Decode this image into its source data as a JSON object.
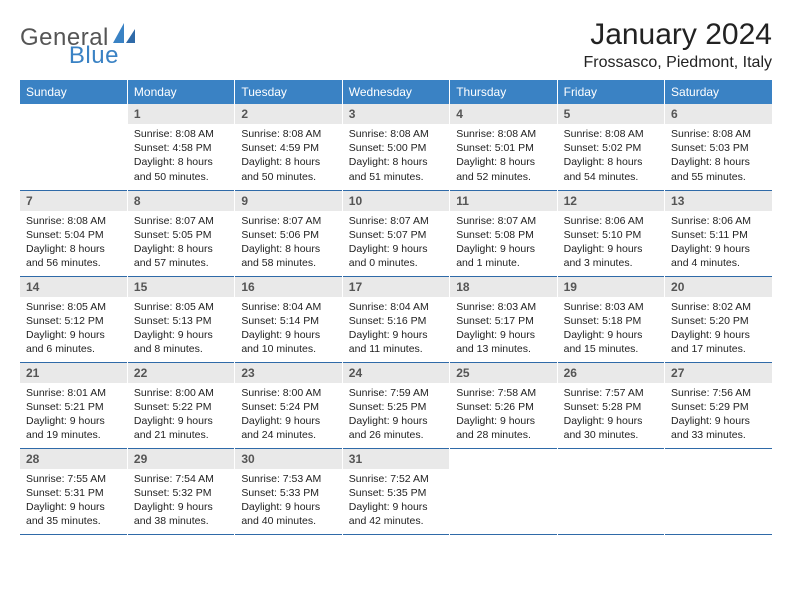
{
  "brand": {
    "text1": "General",
    "text2": "Blue",
    "color1": "#555555",
    "color2": "#3a82c4"
  },
  "title": "January 2024",
  "location": "Frossasco, Piedmont, Italy",
  "colors": {
    "header_bg": "#3a82c4",
    "header_text": "#ffffff",
    "daynum_bg": "#e9e9e9",
    "row_border": "#2f6aa8"
  },
  "day_headers": [
    "Sunday",
    "Monday",
    "Tuesday",
    "Wednesday",
    "Thursday",
    "Friday",
    "Saturday"
  ],
  "weeks": [
    [
      {
        "n": "",
        "l1": "",
        "l2": "",
        "l3": "",
        "l4": "",
        "empty": true
      },
      {
        "n": "1",
        "l1": "Sunrise: 8:08 AM",
        "l2": "Sunset: 4:58 PM",
        "l3": "Daylight: 8 hours",
        "l4": "and 50 minutes."
      },
      {
        "n": "2",
        "l1": "Sunrise: 8:08 AM",
        "l2": "Sunset: 4:59 PM",
        "l3": "Daylight: 8 hours",
        "l4": "and 50 minutes."
      },
      {
        "n": "3",
        "l1": "Sunrise: 8:08 AM",
        "l2": "Sunset: 5:00 PM",
        "l3": "Daylight: 8 hours",
        "l4": "and 51 minutes."
      },
      {
        "n": "4",
        "l1": "Sunrise: 8:08 AM",
        "l2": "Sunset: 5:01 PM",
        "l3": "Daylight: 8 hours",
        "l4": "and 52 minutes."
      },
      {
        "n": "5",
        "l1": "Sunrise: 8:08 AM",
        "l2": "Sunset: 5:02 PM",
        "l3": "Daylight: 8 hours",
        "l4": "and 54 minutes."
      },
      {
        "n": "6",
        "l1": "Sunrise: 8:08 AM",
        "l2": "Sunset: 5:03 PM",
        "l3": "Daylight: 8 hours",
        "l4": "and 55 minutes."
      }
    ],
    [
      {
        "n": "7",
        "l1": "Sunrise: 8:08 AM",
        "l2": "Sunset: 5:04 PM",
        "l3": "Daylight: 8 hours",
        "l4": "and 56 minutes."
      },
      {
        "n": "8",
        "l1": "Sunrise: 8:07 AM",
        "l2": "Sunset: 5:05 PM",
        "l3": "Daylight: 8 hours",
        "l4": "and 57 minutes."
      },
      {
        "n": "9",
        "l1": "Sunrise: 8:07 AM",
        "l2": "Sunset: 5:06 PM",
        "l3": "Daylight: 8 hours",
        "l4": "and 58 minutes."
      },
      {
        "n": "10",
        "l1": "Sunrise: 8:07 AM",
        "l2": "Sunset: 5:07 PM",
        "l3": "Daylight: 9 hours",
        "l4": "and 0 minutes."
      },
      {
        "n": "11",
        "l1": "Sunrise: 8:07 AM",
        "l2": "Sunset: 5:08 PM",
        "l3": "Daylight: 9 hours",
        "l4": "and 1 minute."
      },
      {
        "n": "12",
        "l1": "Sunrise: 8:06 AM",
        "l2": "Sunset: 5:10 PM",
        "l3": "Daylight: 9 hours",
        "l4": "and 3 minutes."
      },
      {
        "n": "13",
        "l1": "Sunrise: 8:06 AM",
        "l2": "Sunset: 5:11 PM",
        "l3": "Daylight: 9 hours",
        "l4": "and 4 minutes."
      }
    ],
    [
      {
        "n": "14",
        "l1": "Sunrise: 8:05 AM",
        "l2": "Sunset: 5:12 PM",
        "l3": "Daylight: 9 hours",
        "l4": "and 6 minutes."
      },
      {
        "n": "15",
        "l1": "Sunrise: 8:05 AM",
        "l2": "Sunset: 5:13 PM",
        "l3": "Daylight: 9 hours",
        "l4": "and 8 minutes."
      },
      {
        "n": "16",
        "l1": "Sunrise: 8:04 AM",
        "l2": "Sunset: 5:14 PM",
        "l3": "Daylight: 9 hours",
        "l4": "and 10 minutes."
      },
      {
        "n": "17",
        "l1": "Sunrise: 8:04 AM",
        "l2": "Sunset: 5:16 PM",
        "l3": "Daylight: 9 hours",
        "l4": "and 11 minutes."
      },
      {
        "n": "18",
        "l1": "Sunrise: 8:03 AM",
        "l2": "Sunset: 5:17 PM",
        "l3": "Daylight: 9 hours",
        "l4": "and 13 minutes."
      },
      {
        "n": "19",
        "l1": "Sunrise: 8:03 AM",
        "l2": "Sunset: 5:18 PM",
        "l3": "Daylight: 9 hours",
        "l4": "and 15 minutes."
      },
      {
        "n": "20",
        "l1": "Sunrise: 8:02 AM",
        "l2": "Sunset: 5:20 PM",
        "l3": "Daylight: 9 hours",
        "l4": "and 17 minutes."
      }
    ],
    [
      {
        "n": "21",
        "l1": "Sunrise: 8:01 AM",
        "l2": "Sunset: 5:21 PM",
        "l3": "Daylight: 9 hours",
        "l4": "and 19 minutes."
      },
      {
        "n": "22",
        "l1": "Sunrise: 8:00 AM",
        "l2": "Sunset: 5:22 PM",
        "l3": "Daylight: 9 hours",
        "l4": "and 21 minutes."
      },
      {
        "n": "23",
        "l1": "Sunrise: 8:00 AM",
        "l2": "Sunset: 5:24 PM",
        "l3": "Daylight: 9 hours",
        "l4": "and 24 minutes."
      },
      {
        "n": "24",
        "l1": "Sunrise: 7:59 AM",
        "l2": "Sunset: 5:25 PM",
        "l3": "Daylight: 9 hours",
        "l4": "and 26 minutes."
      },
      {
        "n": "25",
        "l1": "Sunrise: 7:58 AM",
        "l2": "Sunset: 5:26 PM",
        "l3": "Daylight: 9 hours",
        "l4": "and 28 minutes."
      },
      {
        "n": "26",
        "l1": "Sunrise: 7:57 AM",
        "l2": "Sunset: 5:28 PM",
        "l3": "Daylight: 9 hours",
        "l4": "and 30 minutes."
      },
      {
        "n": "27",
        "l1": "Sunrise: 7:56 AM",
        "l2": "Sunset: 5:29 PM",
        "l3": "Daylight: 9 hours",
        "l4": "and 33 minutes."
      }
    ],
    [
      {
        "n": "28",
        "l1": "Sunrise: 7:55 AM",
        "l2": "Sunset: 5:31 PM",
        "l3": "Daylight: 9 hours",
        "l4": "and 35 minutes."
      },
      {
        "n": "29",
        "l1": "Sunrise: 7:54 AM",
        "l2": "Sunset: 5:32 PM",
        "l3": "Daylight: 9 hours",
        "l4": "and 38 minutes."
      },
      {
        "n": "30",
        "l1": "Sunrise: 7:53 AM",
        "l2": "Sunset: 5:33 PM",
        "l3": "Daylight: 9 hours",
        "l4": "and 40 minutes."
      },
      {
        "n": "31",
        "l1": "Sunrise: 7:52 AM",
        "l2": "Sunset: 5:35 PM",
        "l3": "Daylight: 9 hours",
        "l4": "and 42 minutes."
      },
      {
        "n": "",
        "l1": "",
        "l2": "",
        "l3": "",
        "l4": "",
        "empty": true
      },
      {
        "n": "",
        "l1": "",
        "l2": "",
        "l3": "",
        "l4": "",
        "empty": true
      },
      {
        "n": "",
        "l1": "",
        "l2": "",
        "l3": "",
        "l4": "",
        "empty": true
      }
    ]
  ]
}
